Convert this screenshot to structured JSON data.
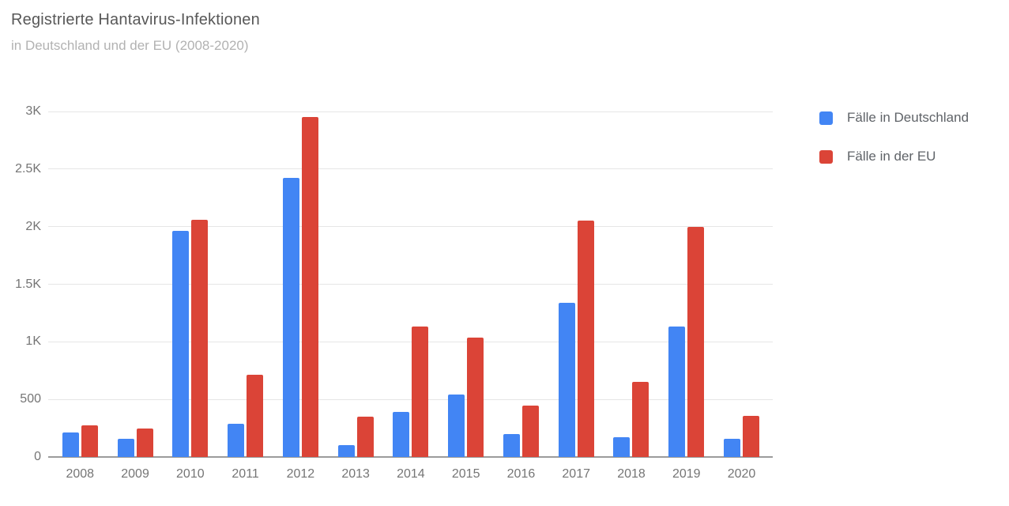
{
  "header": {
    "title": "Registrierte Hantavirus-Infektionen",
    "subtitle": "in Deutschland und der EU (2008-2020)"
  },
  "legend": {
    "items": [
      {
        "label": "Fälle in Deutschland",
        "color": "#4285f4"
      },
      {
        "label": "Fälle in der EU",
        "color": "#db4437"
      }
    ]
  },
  "chart_data": {
    "type": "bar",
    "title": "Registrierte Hantavirus-Infektionen",
    "subtitle": "in Deutschland und der EU (2008-2020)",
    "categories": [
      "2008",
      "2009",
      "2010",
      "2011",
      "2012",
      "2013",
      "2014",
      "2015",
      "2016",
      "2017",
      "2018",
      "2019",
      "2020"
    ],
    "series": [
      {
        "name": "Fälle in Deutschland",
        "color": "#4285f4",
        "values": [
          215,
          155,
          1960,
          285,
          2420,
          105,
          390,
          545,
          200,
          1340,
          170,
          1130,
          160
        ]
      },
      {
        "name": "Fälle in der EU",
        "color": "#db4437",
        "values": [
          275,
          250,
          2060,
          715,
          2950,
          350,
          1135,
          1040,
          445,
          2055,
          655,
          1995,
          360
        ]
      }
    ],
    "xlabel": "",
    "ylabel": "",
    "ylim": [
      0,
      3000
    ],
    "yticks": [
      {
        "value": 0,
        "label": "0"
      },
      {
        "value": 500,
        "label": "500"
      },
      {
        "value": 1000,
        "label": "1K"
      },
      {
        "value": 1500,
        "label": "1.5K"
      },
      {
        "value": 2000,
        "label": "2K"
      },
      {
        "value": 2500,
        "label": "2.5K"
      },
      {
        "value": 3000,
        "label": "3K"
      }
    ],
    "grid": true,
    "legend_position": "right"
  },
  "colors": {
    "background": "#ffffff",
    "gridline": "#e6e6e6",
    "axis_line": "#9b9b9b",
    "tick_text": "#757575",
    "title_text": "#585858",
    "subtitle_text": "#b2b2b2"
  }
}
